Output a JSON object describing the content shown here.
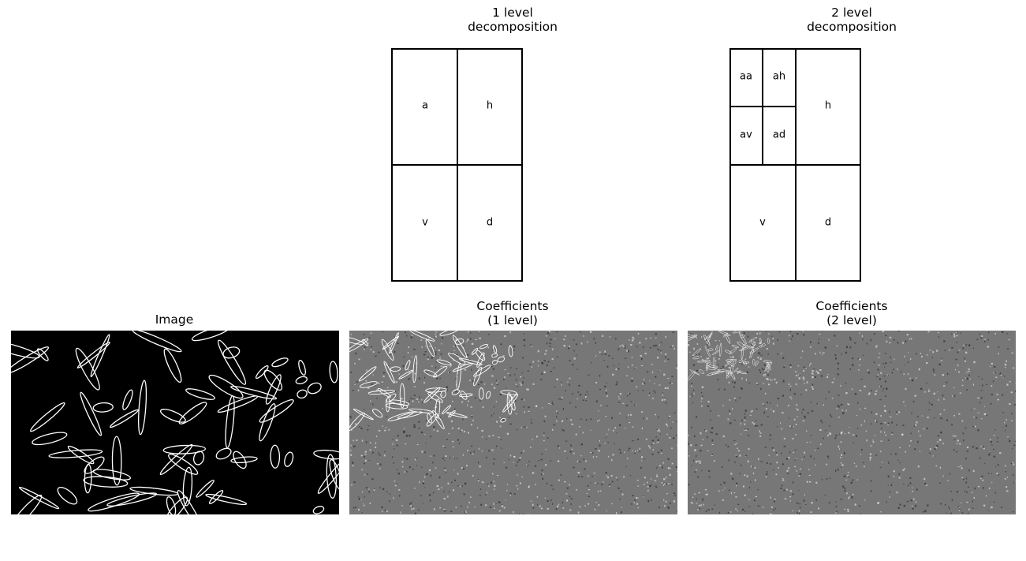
{
  "panels": {
    "decomp1": {
      "title": "1 level\ndecomposition",
      "labels": {
        "a": "a",
        "h": "h",
        "v": "v",
        "d": "d"
      }
    },
    "decomp2": {
      "title": "2 level\ndecomposition",
      "labels": {
        "aa": "aa",
        "ah": "ah",
        "av": "av",
        "ad": "ad",
        "h": "h",
        "v": "v",
        "d": "d"
      }
    },
    "image": {
      "title": "Image"
    },
    "coeff1": {
      "title": "Coefficients\n(1 level)"
    },
    "coeff2": {
      "title": "Coefficients\n(2 level)"
    }
  },
  "colors": {
    "image_background": "#000000",
    "coefficient_background": "#777777",
    "stroke_light": "#ffffff",
    "stroke_dark": "#1a1a1a"
  }
}
